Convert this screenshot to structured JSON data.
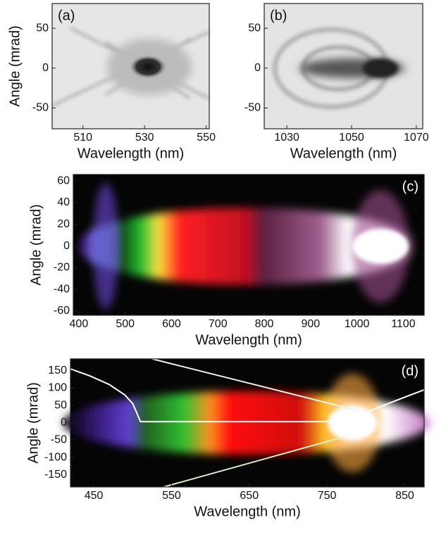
{
  "chart_data": [
    {
      "type": "image",
      "panel_label": "(a)",
      "xlabel": "Wavelength (nm)",
      "ylabel": "Angle (mrad)",
      "xlim": [
        500,
        551
      ],
      "ylim": [
        -76,
        81
      ],
      "xticks": [
        510,
        530,
        550
      ],
      "yticks": [
        50,
        0,
        -50
      ]
    },
    {
      "type": "image",
      "panel_label": "(b)",
      "xlabel": "Wavelength (nm)",
      "xlim": [
        1023,
        1072
      ],
      "ylim": [
        -76,
        81
      ],
      "xticks": [
        1030,
        1050,
        1070
      ],
      "yticks": [
        50,
        0,
        -50
      ]
    },
    {
      "type": "image",
      "panel_label": "(c)",
      "xlabel": "Wavelength (nm)",
      "ylabel": "Angle (mrad)",
      "xlim": [
        388,
        1145
      ],
      "ylim": [
        -64,
        66
      ],
      "xticks": [
        400,
        500,
        600,
        700,
        800,
        900,
        1000,
        1100
      ],
      "yticks": [
        60,
        40,
        20,
        0,
        -20,
        -40,
        -60
      ]
    },
    {
      "type": "image",
      "panel_label": "(d)",
      "xlabel": "Wavelength (nm)",
      "ylabel": "Angle (mrad)",
      "xlim": [
        420,
        875
      ],
      "ylim": [
        -185,
        184
      ],
      "xticks": [
        450,
        550,
        650,
        750,
        850
      ],
      "yticks": [
        150,
        100,
        50,
        0,
        -50,
        -100,
        -150
      ],
      "series": [
        {
          "color": "#ffffff",
          "x": [
            420,
            445,
            470,
            490,
            500,
            505,
            510,
            760,
            800,
            840,
            875
          ],
          "values": [
            155,
            135,
            110,
            80,
            55,
            30,
            3,
            3,
            30,
            65,
            95
          ]
        },
        {
          "color": "#e8f5e8",
          "x": [
            525,
            790
          ],
          "values": [
            184,
            35
          ]
        },
        {
          "color": "#d8f0c8",
          "x": [
            540,
            765
          ],
          "values": [
            -185,
            -45
          ]
        }
      ]
    }
  ]
}
